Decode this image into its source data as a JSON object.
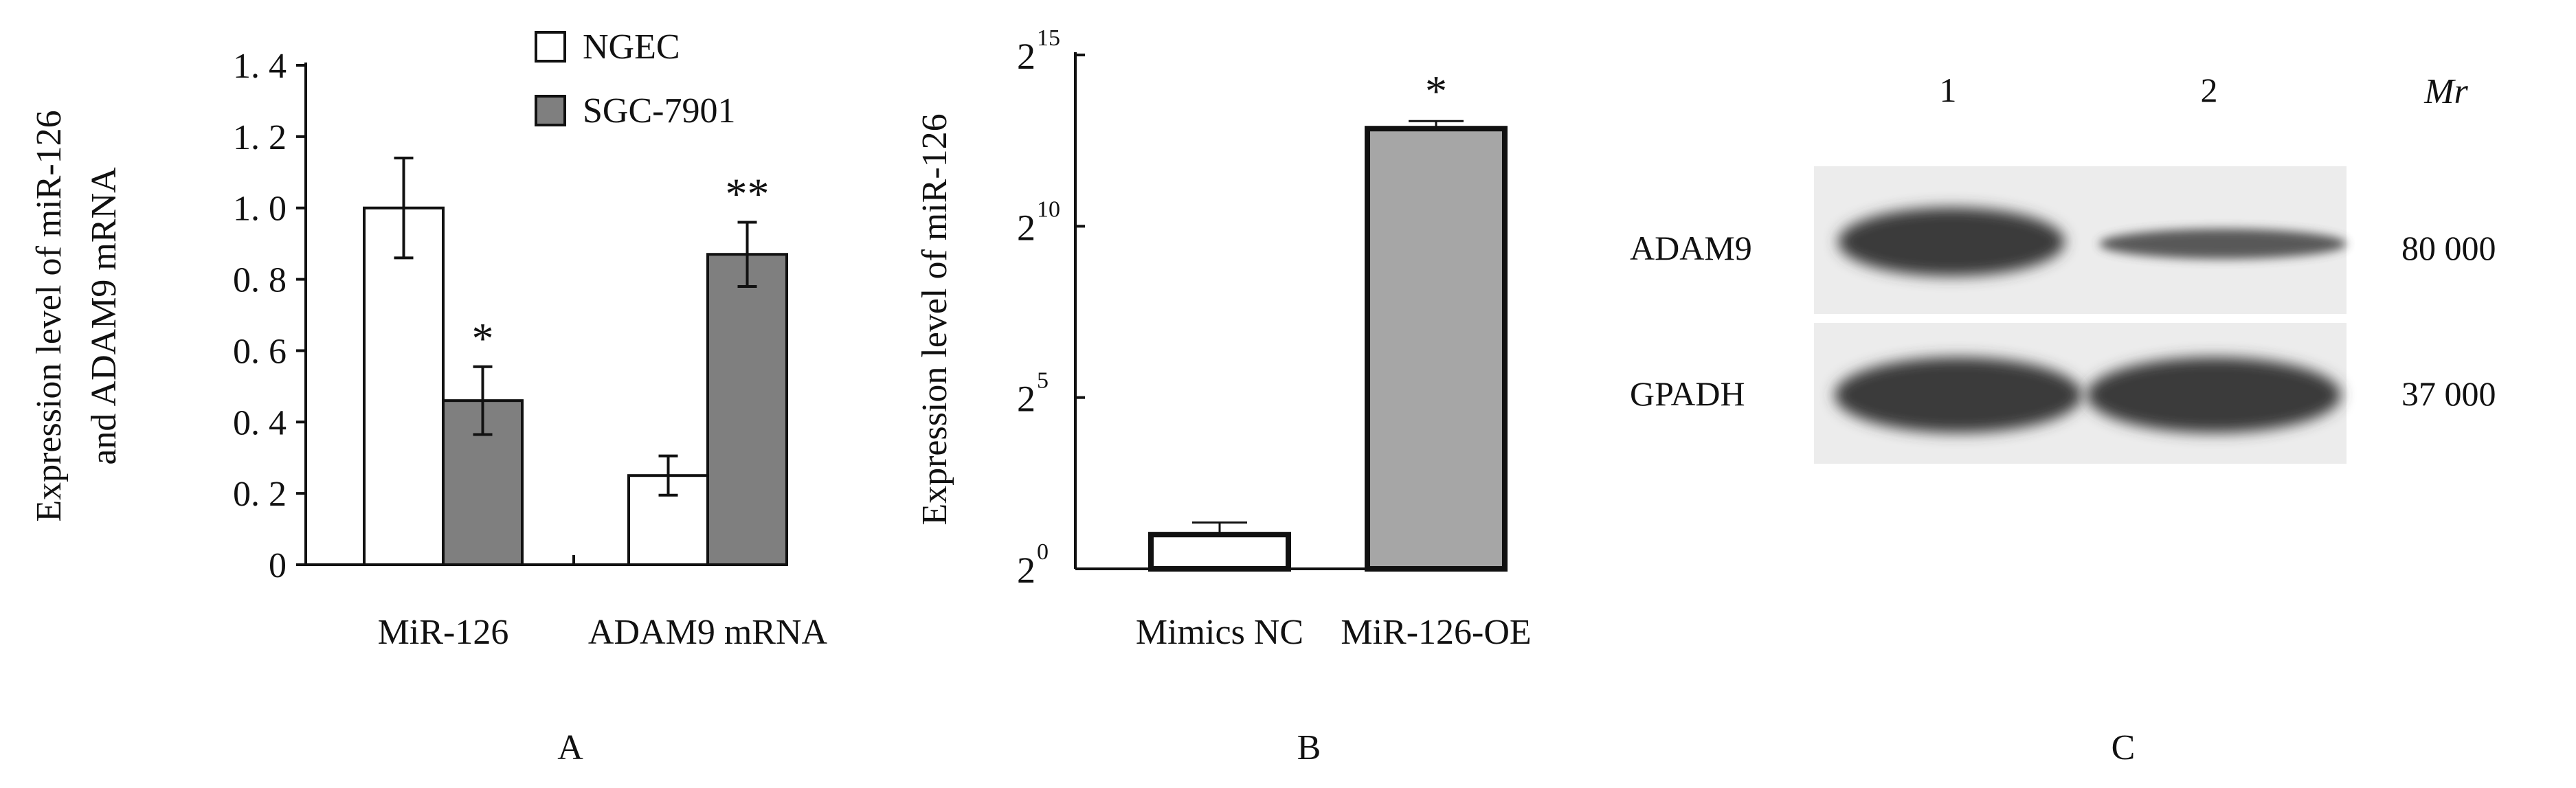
{
  "chart_data": [
    {
      "type": "bar",
      "panel_label": "A",
      "ylabel_lines": [
        "Expression level of miR-126",
        "and ADAM9 mRNA"
      ],
      "ylim": [
        0,
        1.4
      ],
      "ytick_labels": [
        "0",
        "0. 2",
        "0. 4",
        "0. 6",
        "0. 8",
        "1. 0",
        "1. 2",
        "1. 4"
      ],
      "yticks": [
        0,
        0.2,
        0.4,
        0.6,
        0.8,
        1.0,
        1.2,
        1.4
      ],
      "categories": [
        "MiR-126",
        "ADAM9 mRNA"
      ],
      "series": [
        {
          "name": "NGEC",
          "values": [
            1.0,
            0.25
          ],
          "errors": [
            0.14,
            0.055
          ],
          "color": "#ffffff"
        },
        {
          "name": "SGC-7901",
          "values": [
            0.46,
            0.87
          ],
          "errors": [
            0.095,
            0.09
          ],
          "color": "#7f7f7f"
        }
      ],
      "annotations": [
        {
          "text": "*",
          "category": 0,
          "series": 1
        },
        {
          "text": "**",
          "category": 1,
          "series": 1
        }
      ],
      "legend": "top"
    },
    {
      "type": "bar",
      "panel_label": "B",
      "ylabel": "Expression level of miR-126",
      "yscale": "log2",
      "ylim_exp": [
        0,
        15
      ],
      "ytick_bases": [
        "2",
        "2",
        "2",
        "2"
      ],
      "ytick_exps": [
        "0",
        "5",
        "10",
        "15"
      ],
      "categories": [
        "Mimics NC",
        "MiR-126-OE"
      ],
      "values_exp": [
        1.0,
        12.85
      ],
      "errors_exp": [
        0.35,
        0.22
      ],
      "colors": [
        "#ffffff",
        "#a6a6a6"
      ],
      "annotations": [
        {
          "text": "*",
          "category": 1
        }
      ]
    }
  ],
  "panel_c": {
    "label": "C",
    "lanes": [
      "1",
      "2"
    ],
    "mr_label": "Mr",
    "rows": [
      {
        "protein": "ADAM9",
        "mr": "80  000"
      },
      {
        "protein": "GPADH",
        "mr": "37  000"
      }
    ]
  }
}
